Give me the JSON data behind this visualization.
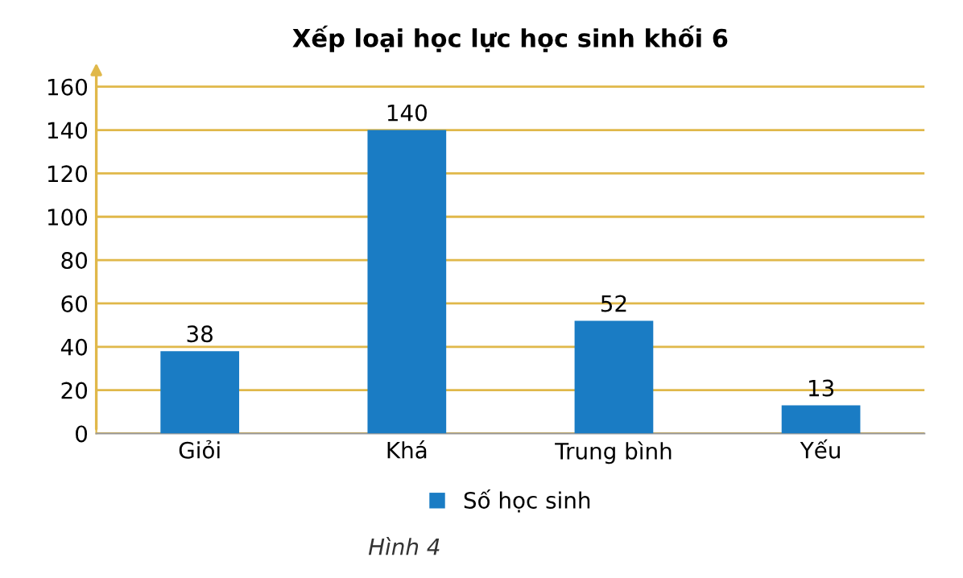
{
  "chart_data": {
    "type": "bar",
    "title": "Xếp loại học lực học sinh khối 6",
    "categories": [
      "Giỏi",
      "Khá",
      "Trung bình",
      "Yếu"
    ],
    "series": [
      {
        "name": "Số học sinh",
        "color": "#1a7cc4",
        "values": [
          38,
          140,
          52,
          13
        ]
      }
    ],
    "ylim": [
      0,
      168
    ],
    "yticks": [
      0,
      20,
      40,
      60,
      80,
      100,
      120,
      140,
      160
    ],
    "grid": "y",
    "legend": "bottom",
    "data_labels": true,
    "annotations": [
      "Hình 4"
    ]
  }
}
